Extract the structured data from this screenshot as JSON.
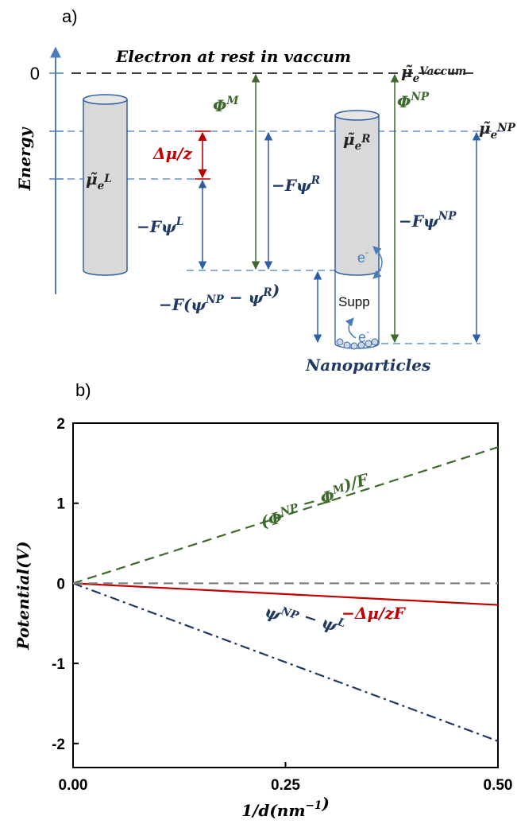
{
  "panel_a": {
    "label": "a)",
    "axis_label": "Energy",
    "zero_label": "0",
    "labels": [
      {
        "text": [
          "Electron at rest in vaccum"
        ]
      },
      {
        "text": [
          "μ̃",
          {
            "sub": "e"
          },
          {
            "sup": "Vaccum"
          }
        ]
      },
      {
        "text": [
          "Φ",
          {
            "sup": "M"
          }
        ]
      },
      {
        "text": [
          "Φ",
          {
            "sup": "NP"
          }
        ]
      },
      {
        "text": [
          "μ̃",
          {
            "sub": "e"
          },
          {
            "sup": "NP"
          }
        ]
      },
      {
        "text": [
          "μ̃",
          {
            "sub": "e"
          },
          {
            "sup": "R"
          }
        ]
      },
      {
        "text": [
          "μ̃",
          {
            "sub": "e"
          },
          {
            "sup": "L"
          }
        ]
      },
      {
        "text": [
          "Δμ/z"
        ]
      },
      {
        "text": [
          "−Fψ",
          {
            "sup": "R"
          }
        ]
      },
      {
        "text": [
          "−Fψ",
          {
            "sup": "L"
          }
        ]
      },
      {
        "text": [
          "−Fψ",
          {
            "sup": "NP"
          }
        ]
      },
      {
        "text": [
          "e",
          {
            "sup": "-"
          }
        ]
      },
      {
        "text": [
          "Supp"
        ]
      },
      {
        "text": [
          "e",
          {
            "sup": "-"
          }
        ]
      },
      {
        "text": [
          "−F(ψ",
          {
            "sup": "NP"
          },
          " − ψ",
          {
            "sup": "R"
          },
          ")"
        ]
      },
      {
        "text": [
          "Nanoparticles"
        ]
      }
    ]
  },
  "panel_b_label": "b)",
  "chart_data": {
    "type": "line",
    "x": [
      0,
      0.5
    ],
    "series": [
      {
        "color": "#3d6a2c",
        "style": "dashed",
        "values": [
          0,
          1.7
        ]
      },
      {
        "color": "#c00000",
        "style": "solid",
        "values": [
          0,
          -0.27
        ]
      },
      {
        "color": "#1f3864",
        "style": "dashdot",
        "values": [
          0,
          -1.97
        ]
      },
      {
        "color": "#808080",
        "style": "dashed",
        "values": [
          0,
          0
        ]
      }
    ],
    "annotations": [
      {
        "text": [
          "(Φ",
          {
            "sup": "NP"
          },
          " − Φ",
          {
            "sup": "M"
          },
          ")/F"
        ]
      },
      {
        "text": [
          "−Δμ/zF"
        ]
      },
      {
        "text": [
          "ψ",
          {
            "sup": "NP"
          },
          " − ψ",
          {
            "sup": "L"
          }
        ]
      }
    ],
    "xlabel": [
      "1/d(nm",
      {
        "sup": "−1"
      },
      ")"
    ],
    "ylabel": [
      "Potential(V)"
    ],
    "xlim": [
      0,
      0.5
    ],
    "ylim": [
      -2.3,
      2
    ],
    "xticks": [
      {
        "value": 0,
        "label": "0.00"
      },
      {
        "value": 0.25,
        "label": "0.25"
      },
      {
        "value": 0.5,
        "label": "0.50"
      }
    ],
    "yticks": [
      -2,
      -1,
      0,
      1,
      2
    ]
  }
}
